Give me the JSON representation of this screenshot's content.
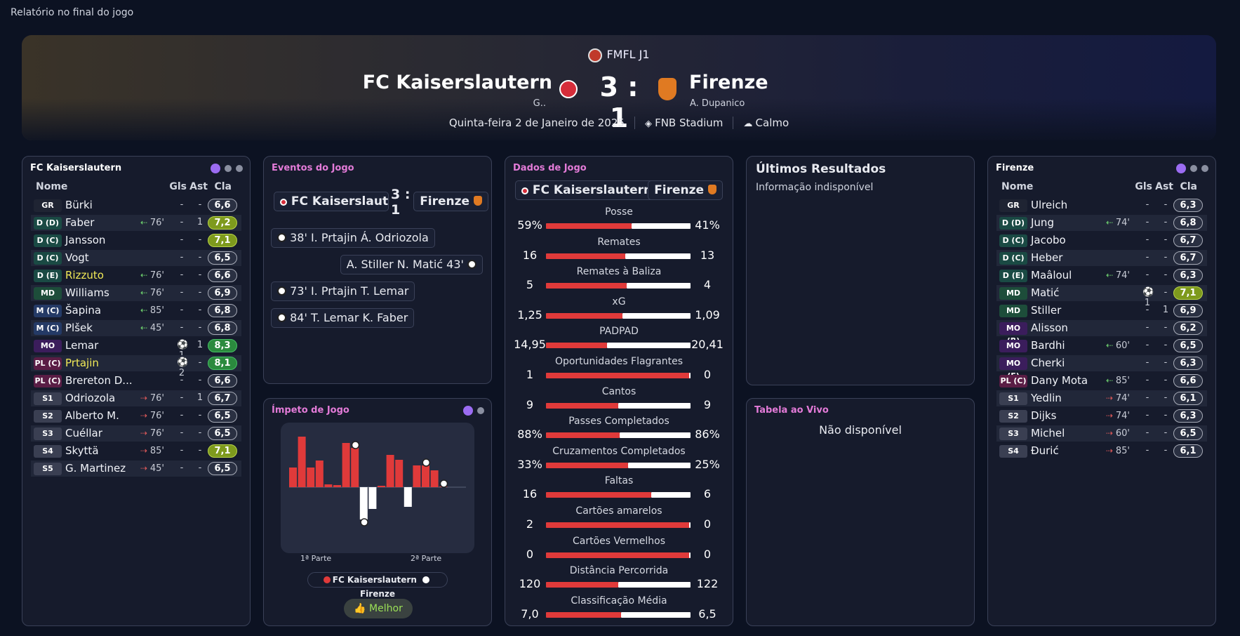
{
  "window_title": "Relatório no final do jogo",
  "header": {
    "competition": "FMFL J1",
    "home_team": "FC Kaiserslautern",
    "away_team": "Firenze",
    "home_manager": "G..",
    "away_manager": "A. Dupanico",
    "score": "3 : 1",
    "date": "Quinta-feira 2 de Janeiro de 2025",
    "stadium": "FNB Stadium",
    "weather": "Calmo"
  },
  "columns": {
    "name": "Nome",
    "goals": "Gls",
    "assists": "Ast",
    "rating": "Cla"
  },
  "home_panel": {
    "title": "FC Kaiserslautern",
    "players": [
      {
        "pos": "GR",
        "name": "Bürki",
        "sub": "",
        "goals": "-",
        "assists": "-",
        "rating": "6,6"
      },
      {
        "pos": "D (D)",
        "name": "Faber",
        "sub": "76'",
        "goals": "-",
        "assists": "1",
        "rating": "7,2"
      },
      {
        "pos": "D (C)",
        "name": "Jansson",
        "sub": "",
        "goals": "-",
        "assists": "-",
        "rating": "7,1"
      },
      {
        "pos": "D (C)",
        "name": "Vogt",
        "sub": "",
        "goals": "-",
        "assists": "-",
        "rating": "6,5"
      },
      {
        "pos": "D (E)",
        "name": "Rizzuto",
        "sub": "76'",
        "goals": "-",
        "assists": "-",
        "rating": "6,6"
      },
      {
        "pos": "MD",
        "name": "Williams",
        "sub": "76'",
        "goals": "-",
        "assists": "-",
        "rating": "6,9"
      },
      {
        "pos": "M (C)",
        "name": "Šapina",
        "sub": "85'",
        "goals": "-",
        "assists": "-",
        "rating": "6,8"
      },
      {
        "pos": "M (C)",
        "name": "Plšek",
        "sub": "45'",
        "goals": "-",
        "assists": "-",
        "rating": "6,8"
      },
      {
        "pos": "MO (C)",
        "name": "Lemar",
        "sub": "",
        "goals": "⚽1",
        "assists": "1",
        "rating": "8,3"
      },
      {
        "pos": "PL (C)",
        "name": "Prtajin",
        "sub": "",
        "goals": "⚽2",
        "assists": "-",
        "rating": "8,1"
      },
      {
        "pos": "PL (C)",
        "name": "Brereton D...",
        "sub": "",
        "goals": "-",
        "assists": "-",
        "rating": "6,6"
      },
      {
        "pos": "S1",
        "name": "Odriozola",
        "sub": "76'",
        "goals": "-",
        "assists": "1",
        "rating": "6,7"
      },
      {
        "pos": "S2",
        "name": "Alberto M.",
        "sub": "76'",
        "goals": "-",
        "assists": "-",
        "rating": "6,5"
      },
      {
        "pos": "S3",
        "name": "Cuéllar",
        "sub": "76'",
        "goals": "-",
        "assists": "-",
        "rating": "6,5"
      },
      {
        "pos": "S4",
        "name": "Skyttä",
        "sub": "85'",
        "goals": "-",
        "assists": "-",
        "rating": "7,1"
      },
      {
        "pos": "S5",
        "name": "G. Martinez",
        "sub": "45'",
        "goals": "-",
        "assists": "-",
        "rating": "6,5"
      }
    ]
  },
  "away_panel": {
    "title": "Firenze",
    "players": [
      {
        "pos": "GR",
        "name": "Ulreich",
        "sub": "",
        "goals": "-",
        "assists": "-",
        "rating": "6,3"
      },
      {
        "pos": "D (D)",
        "name": "Jung",
        "sub": "74'",
        "goals": "-",
        "assists": "-",
        "rating": "6,8"
      },
      {
        "pos": "D (C)",
        "name": "Jacobo",
        "sub": "",
        "goals": "-",
        "assists": "-",
        "rating": "6,7"
      },
      {
        "pos": "D (C)",
        "name": "Heber",
        "sub": "",
        "goals": "-",
        "assists": "-",
        "rating": "6,7"
      },
      {
        "pos": "D (E)",
        "name": "Maâloul",
        "sub": "74'",
        "goals": "-",
        "assists": "-",
        "rating": "6,3"
      },
      {
        "pos": "MD",
        "name": "Matić",
        "sub": "",
        "goals": "⚽1",
        "assists": "-",
        "rating": "7,1"
      },
      {
        "pos": "MD",
        "name": "Stiller",
        "sub": "",
        "goals": "-",
        "assists": "1",
        "rating": "6,9"
      },
      {
        "pos": "MO (R)",
        "name": "Alisson",
        "sub": "",
        "goals": "-",
        "assists": "-",
        "rating": "6,2"
      },
      {
        "pos": "MO (C)",
        "name": "Bardhi",
        "sub": "60'",
        "goals": "-",
        "assists": "-",
        "rating": "6,5"
      },
      {
        "pos": "MO (E)",
        "name": "Cherki",
        "sub": "",
        "goals": "-",
        "assists": "-",
        "rating": "6,3"
      },
      {
        "pos": "PL (C)",
        "name": "Dany Mota",
        "sub": "85'",
        "goals": "-",
        "assists": "-",
        "rating": "6,6"
      },
      {
        "pos": "S1",
        "name": "Yedlin",
        "sub": "74'",
        "goals": "-",
        "assists": "-",
        "rating": "6,1"
      },
      {
        "pos": "S2",
        "name": "Dijks",
        "sub": "74'",
        "goals": "-",
        "assists": "-",
        "rating": "6,3"
      },
      {
        "pos": "S3",
        "name": "Michel",
        "sub": "60'",
        "goals": "-",
        "assists": "-",
        "rating": "6,5"
      },
      {
        "pos": "S4",
        "name": "Đurić",
        "sub": "85'",
        "goals": "-",
        "assists": "-",
        "rating": "6,1"
      }
    ]
  },
  "events_panel": {
    "title": "Eventos do Jogo",
    "home_label": "FC Kaiserslaut...",
    "away_label": "Firenze",
    "score": "3 : 1",
    "events": [
      {
        "side": "home",
        "text": "38' I. Prtajin Á. Odriozola"
      },
      {
        "side": "away",
        "text": "A. Stiller N. Matić 43'"
      },
      {
        "side": "home",
        "text": "73' I. Prtajin T. Lemar"
      },
      {
        "side": "home",
        "text": "84' T. Lemar K. Faber"
      }
    ]
  },
  "stats_panel": {
    "title": "Dados de Jogo",
    "home_label": "FC Kaiserslautern",
    "away_label": "Firenze",
    "stats": [
      {
        "label": "Posse",
        "home": "59%",
        "away": "41%",
        "hp": 0.59
      },
      {
        "label": "Remates",
        "home": "16",
        "away": "13",
        "hp": 0.55
      },
      {
        "label": "Remates à Baliza",
        "home": "5",
        "away": "4",
        "hp": 0.56
      },
      {
        "label": "xG",
        "home": "1,25",
        "away": "1,09",
        "hp": 0.53
      },
      {
        "label": "PADPAD",
        "home": "14,95",
        "away": "20,41",
        "hp": 0.42
      },
      {
        "label": "Oportunidades Flagrantes",
        "home": "1",
        "away": "0",
        "hp": 1.0
      },
      {
        "label": "Cantos",
        "home": "9",
        "away": "9",
        "hp": 0.5
      },
      {
        "label": "Passes Completados",
        "home": "88%",
        "away": "86%",
        "hp": 0.51
      },
      {
        "label": "Cruzamentos Completados",
        "home": "33%",
        "away": "25%",
        "hp": 0.57
      },
      {
        "label": "Faltas",
        "home": "16",
        "away": "6",
        "hp": 0.73
      },
      {
        "label": "Cartões amarelos",
        "home": "2",
        "away": "0",
        "hp": 1.0
      },
      {
        "label": "Cartões Vermelhos",
        "home": "0",
        "away": "0",
        "hp": 1.0
      },
      {
        "label": "Distância Percorrida",
        "home": "120",
        "away": "122",
        "hp": 0.5
      },
      {
        "label": "Classificação Média",
        "home": "7,0",
        "away": "6,5",
        "hp": 0.52
      }
    ]
  },
  "results_panel": {
    "title": "Últimos Resultados",
    "message": "Informação indisponível"
  },
  "table_panel": {
    "title": "Tabela ao Vivo",
    "message": "Não disponível"
  },
  "momentum_panel": {
    "title": "Ímpeto de Jogo",
    "half1": "1ª Parte",
    "half2": "2ª Parte",
    "legend_home": "FC Kaiserslautern",
    "legend_away": "Firenze",
    "button": "Melhor",
    "colors": {
      "home": "#e03a3a",
      "away": "#ffffff"
    }
  },
  "chart_data": {
    "type": "bar",
    "title": "Ímpeto de Jogo",
    "categories": [
      "1",
      "2",
      "3",
      "4",
      "5",
      "6",
      "7",
      "8",
      "9",
      "10",
      "11",
      "12",
      "13",
      "14",
      "15",
      "16",
      "17",
      "18",
      "19",
      "20",
      "21"
    ],
    "series": [
      {
        "name": "FC Kaiserslautern",
        "values": [
          28,
          72,
          28,
          38,
          4,
          3,
          63,
          56,
          0,
          0,
          2,
          46,
          39,
          0,
          31,
          31,
          24,
          1,
          0,
          0,
          0
        ]
      },
      {
        "name": "Firenze",
        "values": [
          0,
          0,
          0,
          0,
          0,
          0,
          0,
          0,
          46,
          31,
          0,
          0,
          0,
          28,
          0,
          0,
          0,
          0,
          0,
          0,
          0
        ]
      }
    ],
    "goals": [
      {
        "bar": 8,
        "side": "home"
      },
      {
        "bar": 9,
        "side": "away"
      },
      {
        "bar": 16,
        "side": "home"
      },
      {
        "bar": 18,
        "side": "home"
      }
    ],
    "xlabels": [
      "1ª Parte",
      "2ª Parte"
    ]
  }
}
